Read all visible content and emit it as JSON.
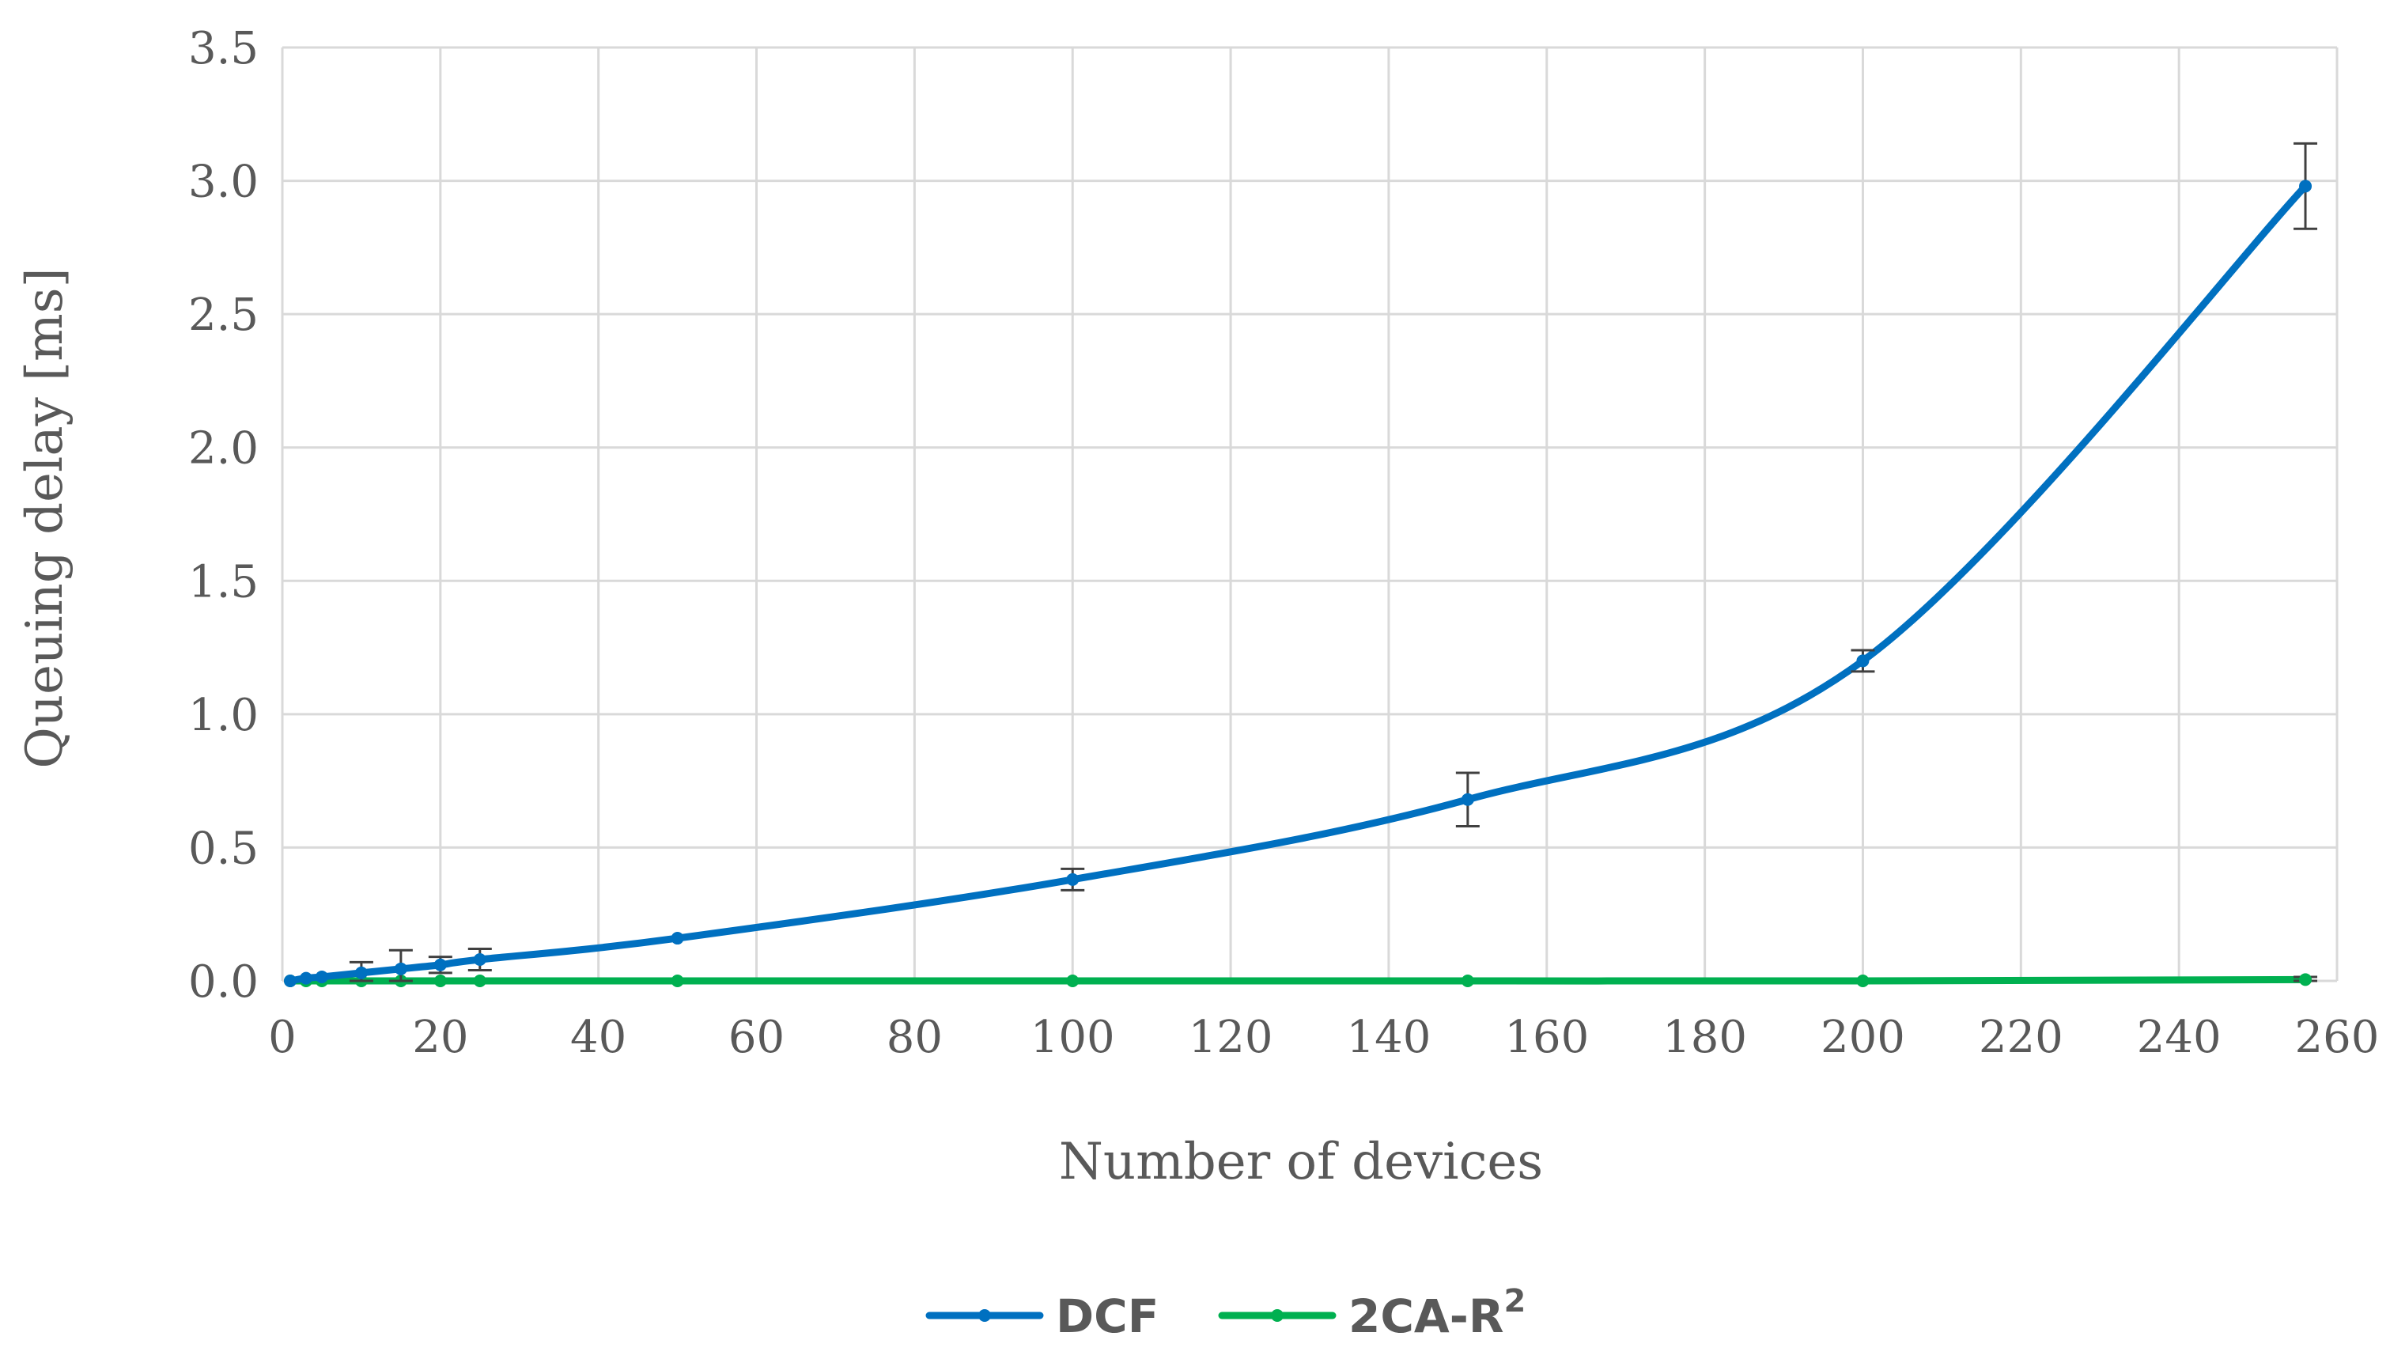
{
  "chart_data": {
    "type": "line",
    "title": "",
    "xlabel": "Number of devices",
    "ylabel": "Queuing delay [ms]",
    "xlim": [
      0,
      260
    ],
    "ylim": [
      0,
      3.5
    ],
    "x_ticks": [
      "0",
      "20",
      "40",
      "60",
      "80",
      "100",
      "120",
      "140",
      "160",
      "180",
      "200",
      "220",
      "240",
      "260"
    ],
    "y_ticks": [
      "0.0",
      "0.5",
      "1.0",
      "1.5",
      "2.0",
      "2.5",
      "3.0",
      "3.5"
    ],
    "grid": true,
    "legend_position": "bottom",
    "series": [
      {
        "name": "DCF",
        "superscript": "",
        "color": "#0070c0",
        "x": [
          1,
          3,
          5,
          10,
          15,
          20,
          25,
          50,
          100,
          150,
          200,
          256
        ],
        "y": [
          0.0,
          0.01,
          0.015,
          0.03,
          0.045,
          0.06,
          0.08,
          0.16,
          0.38,
          0.68,
          1.2,
          2.98
        ],
        "error": [
          0,
          0,
          0,
          0.04,
          0.07,
          0.03,
          0.04,
          0,
          0.04,
          0.1,
          0.04,
          0.16
        ]
      },
      {
        "name": "2CA-R",
        "superscript": "2",
        "color": "#00b050",
        "x": [
          1,
          3,
          5,
          10,
          15,
          20,
          25,
          50,
          100,
          150,
          200,
          256
        ],
        "y": [
          0.0,
          0.0,
          0.0,
          0.0,
          0.0,
          0.0,
          0.0,
          0.0,
          0.0,
          0.0,
          0.0,
          0.005
        ],
        "error": [
          0,
          0,
          0,
          0,
          0,
          0,
          0,
          0,
          0,
          0,
          0,
          0.01
        ]
      }
    ]
  }
}
